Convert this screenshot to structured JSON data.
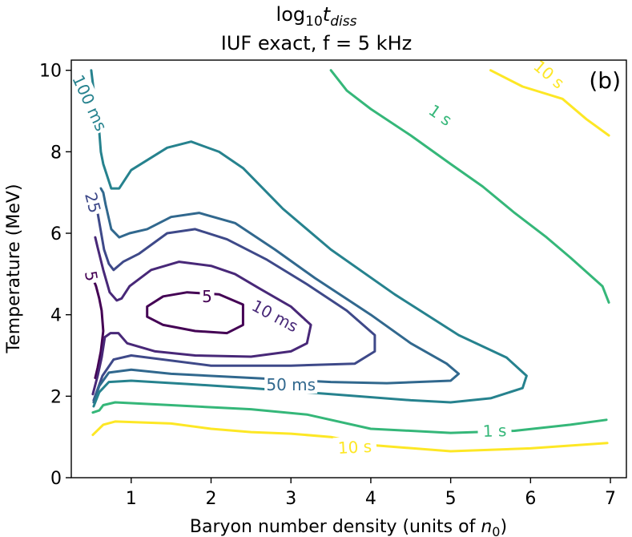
{
  "chart_data": {
    "type": "contour",
    "title_line1_main": "log",
    "title_line1_sub": "10",
    "title_line1_var": "t",
    "title_line1_varsub": "diss",
    "title_line2": "IUF exact, f = 5 kHz",
    "panel_label": "(b)",
    "xlabel_prefix": "Baryon number density (units of ",
    "xlabel_var": "n",
    "xlabel_varsub": "0",
    "xlabel_suffix": ")",
    "ylabel": "Temperature (MeV)",
    "xlim": [
      0.25,
      7.2
    ],
    "ylim": [
      0,
      10.25
    ],
    "xticks": [
      1,
      2,
      3,
      4,
      5,
      6,
      7
    ],
    "yticks": [
      0,
      2,
      4,
      6,
      8,
      10
    ],
    "colors": {
      "t_5ms": "#440154",
      "t_10ms": "#482878",
      "t_25ms": "#3e4989",
      "t_50ms": "#31688e",
      "t_100ms": "#26828e",
      "t_1s": "#35b779",
      "t_10s": "#fde725"
    },
    "contours": [
      {
        "name": "5 ms",
        "color_key": "t_5ms",
        "closed": true,
        "points": [
          [
            1.2,
            4.2
          ],
          [
            1.4,
            4.45
          ],
          [
            1.7,
            4.55
          ],
          [
            2.1,
            4.5
          ],
          [
            2.4,
            4.25
          ],
          [
            2.4,
            3.75
          ],
          [
            2.2,
            3.55
          ],
          [
            1.8,
            3.6
          ],
          [
            1.4,
            3.75
          ],
          [
            1.2,
            3.95
          ]
        ]
      },
      {
        "name": "5 ms",
        "color_key": "t_5ms",
        "closed": false,
        "points": [
          [
            0.52,
            4.9
          ],
          [
            0.56,
            4.7
          ],
          [
            0.6,
            4.4
          ],
          [
            0.63,
            4.1
          ],
          [
            0.65,
            3.6
          ],
          [
            0.62,
            3.1
          ],
          [
            0.58,
            2.7
          ],
          [
            0.55,
            2.45
          ]
        ]
      },
      {
        "name": "10 ms",
        "color_key": "t_10ms",
        "closed": false,
        "points": [
          [
            0.52,
            2.05
          ],
          [
            0.58,
            2.5
          ],
          [
            0.63,
            2.95
          ],
          [
            0.67,
            3.45
          ],
          [
            0.74,
            3.55
          ],
          [
            0.84,
            3.55
          ],
          [
            0.95,
            3.3
          ],
          [
            1.3,
            3.1
          ],
          [
            1.8,
            3.0
          ],
          [
            2.5,
            2.97
          ],
          [
            3.0,
            3.1
          ],
          [
            3.2,
            3.3
          ],
          [
            3.25,
            3.75
          ],
          [
            3.0,
            4.2
          ],
          [
            2.6,
            4.65
          ],
          [
            2.3,
            5.0
          ],
          [
            2.0,
            5.2
          ],
          [
            1.6,
            5.3
          ],
          [
            1.25,
            5.1
          ],
          [
            0.98,
            4.7
          ],
          [
            0.88,
            4.4
          ],
          [
            0.82,
            4.35
          ],
          [
            0.73,
            4.55
          ],
          [
            0.65,
            5.1
          ],
          [
            0.58,
            5.65
          ],
          [
            0.55,
            5.9
          ]
        ]
      },
      {
        "name": "25 ms",
        "color_key": "t_25ms",
        "closed": false,
        "points": [
          [
            0.53,
            1.9
          ],
          [
            0.64,
            2.5
          ],
          [
            0.78,
            2.9
          ],
          [
            1.0,
            3.0
          ],
          [
            2.0,
            2.75
          ],
          [
            3.0,
            2.75
          ],
          [
            3.8,
            2.8
          ],
          [
            4.05,
            3.1
          ],
          [
            4.05,
            3.5
          ],
          [
            3.7,
            4.1
          ],
          [
            3.2,
            4.75
          ],
          [
            2.7,
            5.35
          ],
          [
            2.2,
            5.85
          ],
          [
            1.8,
            6.1
          ],
          [
            1.45,
            6.0
          ],
          [
            1.1,
            5.5
          ],
          [
            0.9,
            5.3
          ],
          [
            0.78,
            5.1
          ],
          [
            0.72,
            5.25
          ],
          [
            0.66,
            5.6
          ],
          [
            0.58,
            6.5
          ],
          [
            0.55,
            6.6
          ]
        ]
      },
      {
        "name": "50 ms",
        "color_key": "t_50ms",
        "closed": false,
        "points": [
          [
            0.53,
            1.85
          ],
          [
            0.6,
            2.25
          ],
          [
            0.72,
            2.58
          ],
          [
            1.0,
            2.65
          ],
          [
            1.5,
            2.55
          ],
          [
            2.5,
            2.45
          ],
          [
            3.5,
            2.35
          ],
          [
            4.2,
            2.32
          ],
          [
            5.0,
            2.38
          ],
          [
            5.1,
            2.55
          ],
          [
            4.95,
            2.8
          ],
          [
            4.5,
            3.3
          ],
          [
            4.0,
            4.0
          ],
          [
            3.3,
            4.9
          ],
          [
            2.8,
            5.6
          ],
          [
            2.3,
            6.25
          ],
          [
            1.85,
            6.5
          ],
          [
            1.5,
            6.4
          ],
          [
            1.2,
            6.1
          ],
          [
            0.98,
            6.0
          ],
          [
            0.85,
            5.9
          ],
          [
            0.75,
            6.1
          ],
          [
            0.68,
            6.7
          ],
          [
            0.65,
            7.0
          ],
          [
            0.62,
            7.1
          ]
        ]
      },
      {
        "name": "100 ms",
        "color_key": "t_100ms",
        "closed": false,
        "points": [
          [
            0.53,
            1.75
          ],
          [
            0.6,
            2.1
          ],
          [
            0.72,
            2.35
          ],
          [
            1.0,
            2.38
          ],
          [
            1.7,
            2.3
          ],
          [
            2.5,
            2.2
          ],
          [
            3.5,
            2.05
          ],
          [
            4.5,
            1.9
          ],
          [
            5.0,
            1.85
          ],
          [
            5.5,
            1.95
          ],
          [
            5.9,
            2.2
          ],
          [
            5.95,
            2.5
          ],
          [
            5.7,
            2.95
          ],
          [
            5.1,
            3.5
          ],
          [
            4.3,
            4.5
          ],
          [
            3.5,
            5.6
          ],
          [
            2.9,
            6.6
          ],
          [
            2.4,
            7.6
          ],
          [
            2.1,
            8.0
          ],
          [
            1.75,
            8.25
          ],
          [
            1.45,
            8.1
          ],
          [
            1.0,
            7.55
          ],
          [
            0.85,
            7.1
          ],
          [
            0.75,
            7.1
          ],
          [
            0.65,
            7.7
          ],
          [
            0.62,
            8.0
          ],
          [
            0.6,
            8.5
          ],
          [
            0.55,
            9.2
          ],
          [
            0.5,
            10.0
          ]
        ]
      },
      {
        "name": "1 s",
        "color_key": "t_1s",
        "closed": false,
        "points": [
          [
            3.5,
            10.0
          ],
          [
            3.7,
            9.5
          ],
          [
            4.0,
            9.05
          ],
          [
            4.5,
            8.4
          ],
          [
            5.0,
            7.7
          ],
          [
            5.4,
            7.15
          ],
          [
            5.8,
            6.5
          ],
          [
            6.2,
            5.9
          ],
          [
            6.5,
            5.4
          ],
          [
            6.9,
            4.7
          ],
          [
            6.98,
            4.3
          ]
        ]
      },
      {
        "name": "1 s",
        "color_key": "t_1s",
        "closed": false,
        "points": [
          [
            0.52,
            1.6
          ],
          [
            0.6,
            1.65
          ],
          [
            0.65,
            1.78
          ],
          [
            0.8,
            1.85
          ],
          [
            1.5,
            1.78
          ],
          [
            2.5,
            1.68
          ],
          [
            3.2,
            1.55
          ],
          [
            4.0,
            1.2
          ],
          [
            5.0,
            1.1
          ],
          [
            5.8,
            1.15
          ],
          [
            6.5,
            1.3
          ],
          [
            6.95,
            1.42
          ]
        ]
      },
      {
        "name": "10 s",
        "color_key": "t_10s",
        "closed": false,
        "points": [
          [
            5.5,
            10.0
          ],
          [
            5.9,
            9.6
          ],
          [
            6.4,
            9.3
          ],
          [
            6.7,
            8.8
          ],
          [
            6.98,
            8.4
          ]
        ]
      },
      {
        "name": "10 s",
        "color_key": "t_10s",
        "closed": false,
        "points": [
          [
            0.52,
            1.05
          ],
          [
            0.65,
            1.3
          ],
          [
            0.8,
            1.38
          ],
          [
            1.5,
            1.33
          ],
          [
            2.0,
            1.2
          ],
          [
            2.5,
            1.12
          ],
          [
            3.0,
            1.08
          ],
          [
            3.5,
            1.0
          ],
          [
            4.0,
            0.8
          ],
          [
            5.0,
            0.65
          ],
          [
            6.0,
            0.72
          ],
          [
            6.96,
            0.85
          ]
        ]
      }
    ],
    "contour_labels": [
      {
        "text": "100 ms",
        "x": 0.48,
        "y": 9.2,
        "rotate": 65,
        "color_key": "t_100ms"
      },
      {
        "text": "25",
        "x": 0.52,
        "y": 6.75,
        "rotate": 75,
        "color_key": "t_25ms"
      },
      {
        "text": "5",
        "x": 0.5,
        "y": 4.95,
        "rotate": 80,
        "color_key": "t_5ms"
      },
      {
        "text": "5",
        "x": 1.95,
        "y": 4.45,
        "rotate": 0,
        "color_key": "t_5ms"
      },
      {
        "text": "10 ms",
        "x": 2.8,
        "y": 3.97,
        "rotate": 28,
        "color_key": "t_10ms"
      },
      {
        "text": "50 ms",
        "x": 3.0,
        "y": 2.28,
        "rotate": 0,
        "color_key": "t_50ms"
      },
      {
        "text": "1 s",
        "x": 4.87,
        "y": 8.9,
        "rotate": 35,
        "color_key": "t_1s"
      },
      {
        "text": "1 s",
        "x": 5.55,
        "y": 1.15,
        "rotate": -2,
        "color_key": "t_1s"
      },
      {
        "text": "10 s",
        "x": 6.23,
        "y": 9.9,
        "rotate": 40,
        "color_key": "t_10s"
      },
      {
        "text": "10 s",
        "x": 3.8,
        "y": 0.75,
        "rotate": -3,
        "color_key": "t_10s"
      }
    ]
  }
}
